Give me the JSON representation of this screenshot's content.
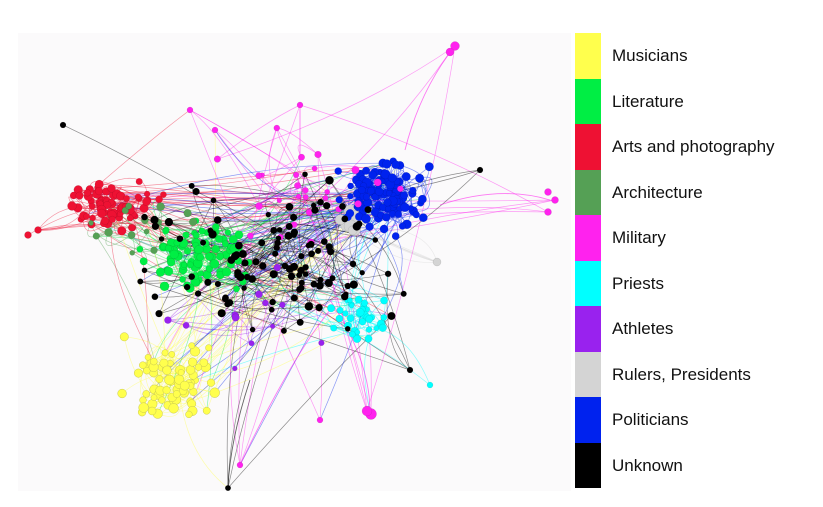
{
  "legend": {
    "items": [
      {
        "label": "Musicians",
        "color": "#ffff4d"
      },
      {
        "label": "Literature",
        "color": "#00ee44"
      },
      {
        "label": "Arts and photography",
        "color": "#ee1133"
      },
      {
        "label": "Architecture",
        "color": "#55a055"
      },
      {
        "label": "Military",
        "color": "#ff22ee"
      },
      {
        "label": "Priests",
        "color": "#00ffff"
      },
      {
        "label": "Athletes",
        "color": "#9922ee"
      },
      {
        "label": "Rulers, Presidents",
        "color": "#d4d4d4"
      },
      {
        "label": "Politicians",
        "color": "#0022ee"
      },
      {
        "label": "Unknown",
        "color": "#000000"
      }
    ]
  }
}
